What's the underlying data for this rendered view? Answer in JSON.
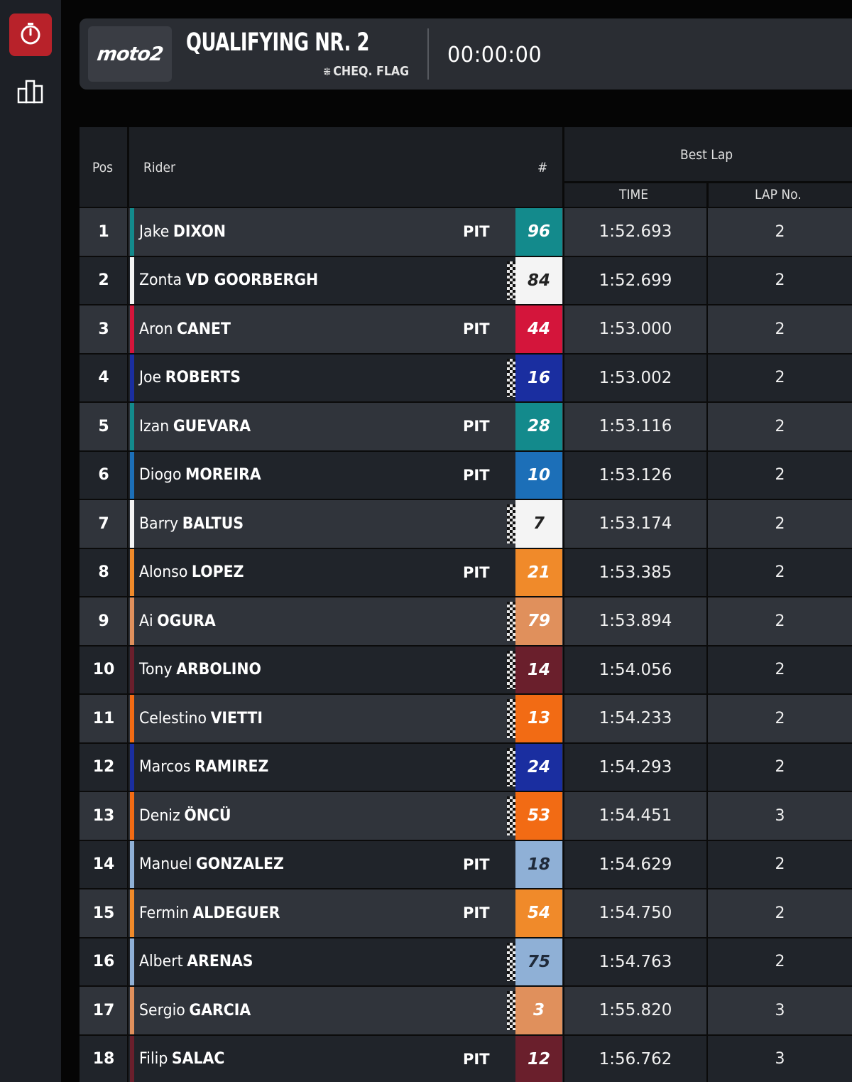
{
  "sidebar": {
    "items": [
      {
        "name": "timing",
        "icon": "stopwatch-icon",
        "active": true
      },
      {
        "name": "standings",
        "icon": "podium-icon",
        "active": false
      }
    ],
    "active_color": "#b8222a"
  },
  "header": {
    "logo_text": "moto2",
    "session_title": "QUALIFYING NR. 2",
    "status": "CHEQ. FLAG",
    "status_icon": "chequered-flag-icon",
    "clock": "00:00:00"
  },
  "table": {
    "headers": {
      "pos": "Pos",
      "rider": "Rider",
      "number": "#",
      "best_lap": "Best Lap",
      "time": "TIME",
      "lap_no": "LAP No."
    },
    "rows": [
      {
        "pos": "1",
        "first": "Jake",
        "last": "DIXON",
        "pit": "PIT",
        "flag": false,
        "number": "96",
        "color": "#138a8c",
        "text_color": "#ffffff",
        "time": "1:52.693",
        "lap": "2"
      },
      {
        "pos": "2",
        "first": "Zonta",
        "last": "VD GOORBERGH",
        "pit": "",
        "flag": true,
        "number": "84",
        "color": "#f4f4f4",
        "text_color": "#222222",
        "time": "1:52.699",
        "lap": "2"
      },
      {
        "pos": "3",
        "first": "Aron",
        "last": "CANET",
        "pit": "PIT",
        "flag": false,
        "number": "44",
        "color": "#d4153b",
        "text_color": "#ffffff",
        "time": "1:53.000",
        "lap": "2"
      },
      {
        "pos": "4",
        "first": "Joe",
        "last": "ROBERTS",
        "pit": "",
        "flag": true,
        "number": "16",
        "color": "#1a2ea0",
        "text_color": "#ffffff",
        "time": "1:53.002",
        "lap": "2"
      },
      {
        "pos": "5",
        "first": "Izan",
        "last": "GUEVARA",
        "pit": "PIT",
        "flag": false,
        "number": "28",
        "color": "#138a8c",
        "text_color": "#ffffff",
        "time": "1:53.116",
        "lap": "2"
      },
      {
        "pos": "6",
        "first": "Diogo",
        "last": "MOREIRA",
        "pit": "PIT",
        "flag": false,
        "number": "10",
        "color": "#1c6fb8",
        "text_color": "#ffffff",
        "time": "1:53.126",
        "lap": "2"
      },
      {
        "pos": "7",
        "first": "Barry",
        "last": "BALTUS",
        "pit": "",
        "flag": true,
        "number": "7",
        "color": "#f4f4f4",
        "text_color": "#222222",
        "time": "1:53.174",
        "lap": "2"
      },
      {
        "pos": "8",
        "first": "Alonso",
        "last": "LOPEZ",
        "pit": "PIT",
        "flag": false,
        "number": "21",
        "color": "#f08a2a",
        "text_color": "#ffffff",
        "time": "1:53.385",
        "lap": "2"
      },
      {
        "pos": "9",
        "first": "Ai",
        "last": "OGURA",
        "pit": "",
        "flag": true,
        "number": "79",
        "color": "#e0905c",
        "text_color": "#ffffff",
        "time": "1:53.894",
        "lap": "2"
      },
      {
        "pos": "10",
        "first": "Tony",
        "last": "ARBOLINO",
        "pit": "",
        "flag": true,
        "number": "14",
        "color": "#6a1f2c",
        "text_color": "#ffffff",
        "time": "1:54.056",
        "lap": "2"
      },
      {
        "pos": "11",
        "first": "Celestino",
        "last": "VIETTI",
        "pit": "",
        "flag": true,
        "number": "13",
        "color": "#f26b14",
        "text_color": "#ffffff",
        "time": "1:54.233",
        "lap": "2"
      },
      {
        "pos": "12",
        "first": "Marcos",
        "last": "RAMIREZ",
        "pit": "",
        "flag": true,
        "number": "24",
        "color": "#1a2ea0",
        "text_color": "#ffffff",
        "time": "1:54.293",
        "lap": "2"
      },
      {
        "pos": "13",
        "first": "Deniz",
        "last": "ÖNCÜ",
        "pit": "",
        "flag": true,
        "number": "53",
        "color": "#f26b14",
        "text_color": "#ffffff",
        "time": "1:54.451",
        "lap": "3"
      },
      {
        "pos": "14",
        "first": "Manuel",
        "last": "GONZALEZ",
        "pit": "PIT",
        "flag": false,
        "number": "18",
        "color": "#8fb0d6",
        "text_color": "#1f2a3a",
        "time": "1:54.629",
        "lap": "2"
      },
      {
        "pos": "15",
        "first": "Fermin",
        "last": "ALDEGUER",
        "pit": "PIT",
        "flag": false,
        "number": "54",
        "color": "#f08a2a",
        "text_color": "#ffffff",
        "time": "1:54.750",
        "lap": "2"
      },
      {
        "pos": "16",
        "first": "Albert",
        "last": "ARENAS",
        "pit": "",
        "flag": true,
        "number": "75",
        "color": "#8fb0d6",
        "text_color": "#1f2a3a",
        "time": "1:54.763",
        "lap": "2"
      },
      {
        "pos": "17",
        "first": "Sergio",
        "last": "GARCIA",
        "pit": "",
        "flag": true,
        "number": "3",
        "color": "#e0905c",
        "text_color": "#ffffff",
        "time": "1:55.820",
        "lap": "3"
      },
      {
        "pos": "18",
        "first": "Filip",
        "last": "SALAC",
        "pit": "PIT",
        "flag": false,
        "number": "12",
        "color": "#6a1f2c",
        "text_color": "#ffffff",
        "time": "1:56.762",
        "lap": "3"
      }
    ]
  }
}
